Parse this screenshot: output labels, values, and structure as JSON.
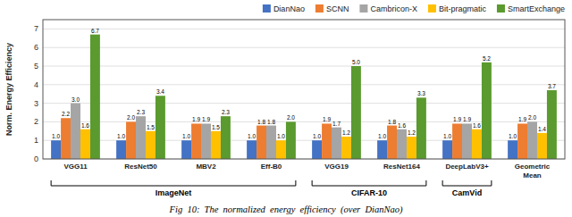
{
  "chart_data": {
    "type": "bar",
    "categories": [
      "VGG11",
      "ResNet50",
      "MBV2",
      "Eff-B0",
      "VGG19",
      "ResNet164",
      "DeepLabV3+",
      "Geometric\nMean"
    ],
    "series": [
      {
        "name": "DianNao",
        "color": "#4472c4",
        "values": [
          1.0,
          1.0,
          1.0,
          1.0,
          1.0,
          1.0,
          1.0,
          1.0
        ],
        "value_labels": [
          "1.0",
          "1.0",
          "1.0",
          "1.0",
          "1.0",
          "1.0",
          "1.0",
          "1.0"
        ]
      },
      {
        "name": "SCNN",
        "color": "#ed7d31",
        "values": [
          2.2,
          2.0,
          1.9,
          1.8,
          1.9,
          1.8,
          1.9,
          1.9
        ],
        "value_labels": [
          "2.2",
          "2.0",
          "1.9",
          "1.8",
          "1.9",
          "1.8",
          "1.9",
          "1.9"
        ]
      },
      {
        "name": "Cambricon-X",
        "color": "#a5a5a5",
        "values": [
          3.0,
          2.3,
          1.9,
          1.8,
          1.7,
          1.6,
          1.9,
          2.0
        ],
        "value_labels": [
          "3.0",
          "2.3",
          "1.9",
          "1.8",
          "1.7",
          "1.6",
          "1.9",
          "2.0"
        ]
      },
      {
        "name": "Bit-pragmatic",
        "color": "#ffc000",
        "values": [
          1.6,
          1.5,
          1.5,
          1.0,
          1.2,
          1.2,
          1.6,
          1.4
        ],
        "value_labels": [
          "1.6",
          "1.5",
          "1.5",
          "1.0",
          "1.2",
          "1.2",
          "1.6",
          "1.4"
        ]
      },
      {
        "name": "SmartExchange",
        "color": "#5a9a2e",
        "values": [
          6.7,
          3.4,
          2.3,
          2.0,
          5.0,
          3.3,
          5.2,
          3.7
        ],
        "value_labels": [
          "6.7",
          "3.4",
          "2.3",
          "2.0",
          "5.0",
          "3.3",
          "5.2",
          "3.7"
        ]
      }
    ],
    "ylabel": "Norm. Energy Efficiency",
    "ylim": [
      0,
      7.5
    ],
    "yticks": [
      0,
      1,
      2,
      3,
      4,
      5,
      6,
      7
    ],
    "grid": true,
    "legend": "upper right",
    "data_labels": true,
    "annotations": [
      {
        "text": "ImageNet",
        "start": 0,
        "end": 3
      },
      {
        "text": "CIFAR-10",
        "start": 4,
        "end": 5
      },
      {
        "text": "CamVid",
        "start": 6,
        "end": 6
      }
    ],
    "caption": "Fig  10:  The  normalized  energy  efficiency  (over  DianNao)"
  }
}
